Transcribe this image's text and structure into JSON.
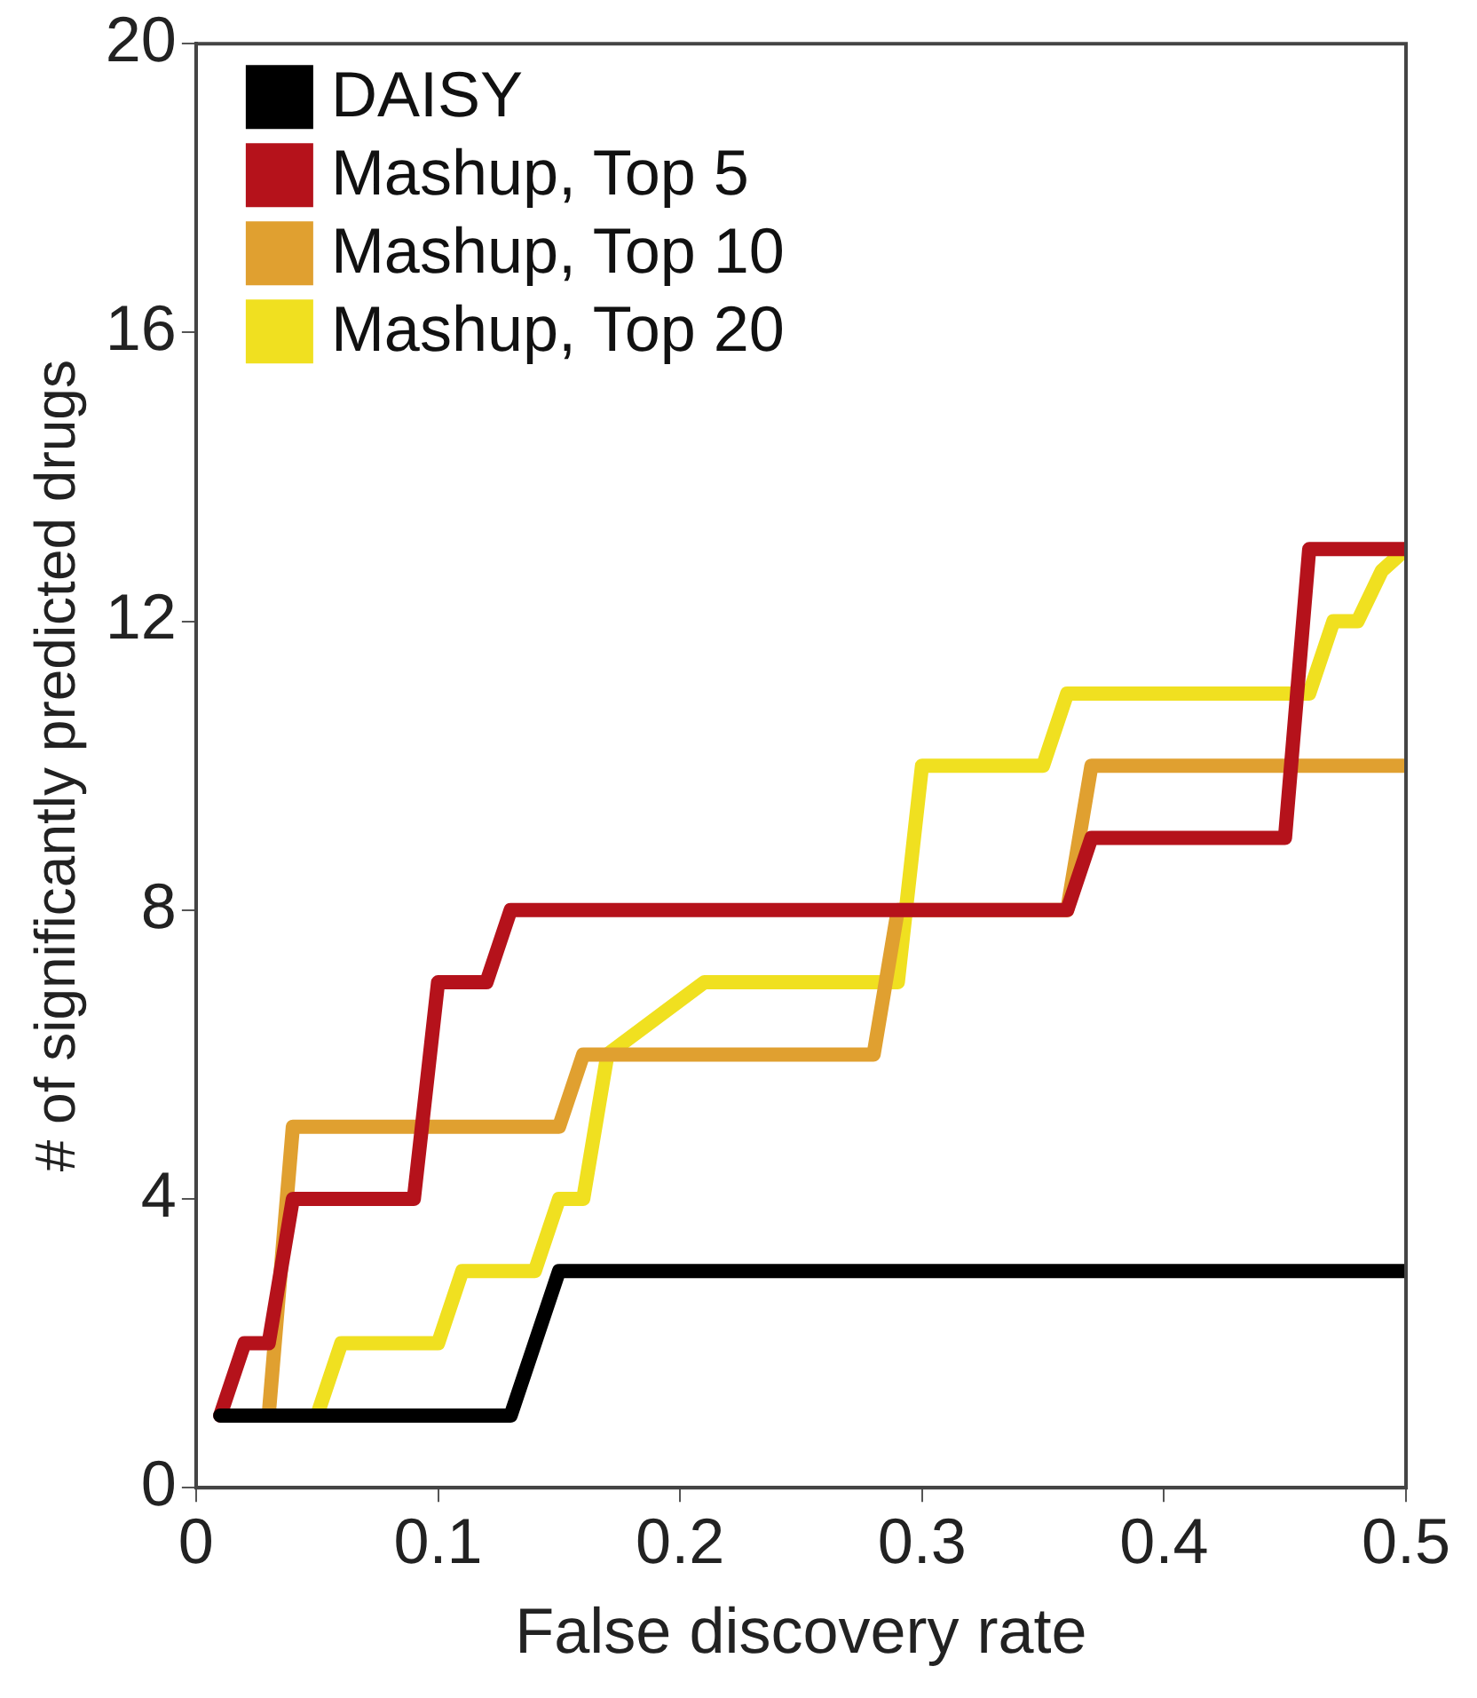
{
  "chart_data": {
    "type": "line",
    "xlabel": "False discovery rate",
    "ylabel": "# of significantly predicted drugs",
    "xlim": [
      0,
      0.5
    ],
    "xticks": [
      0,
      0.1,
      0.2,
      0.3,
      0.4,
      0.5
    ],
    "ylim": [
      0,
      20
    ],
    "yticks": [
      0,
      4,
      8,
      12,
      16,
      20
    ],
    "grid": false,
    "legend": "top left",
    "marker": "none",
    "line_style": "solid",
    "series": [
      {
        "name": "DAISY",
        "color": "#000000",
        "x": [
          0.01,
          0.13,
          0.15,
          0.5
        ],
        "values": [
          1,
          1,
          3,
          3
        ]
      },
      {
        "name": "Mashup, Top 5",
        "color": "#b5121b",
        "x": [
          0.01,
          0.02,
          0.03,
          0.04,
          0.09,
          0.1,
          0.12,
          0.13,
          0.36,
          0.37,
          0.45,
          0.46,
          0.5
        ],
        "values": [
          1,
          2,
          2,
          4,
          4,
          7,
          7,
          8,
          8,
          9,
          9,
          13,
          13
        ]
      },
      {
        "name": "Mashup, Top 10",
        "color": "#e0a030",
        "x": [
          0.03,
          0.04,
          0.15,
          0.16,
          0.28,
          0.29,
          0.36,
          0.37,
          0.5
        ],
        "values": [
          1,
          5,
          5,
          6,
          6,
          8,
          8,
          10,
          10
        ]
      },
      {
        "name": "Mashup, Top 20",
        "color": "#f0e020",
        "x": [
          0.05,
          0.06,
          0.1,
          0.11,
          0.14,
          0.15,
          0.16,
          0.17,
          0.21,
          0.29,
          0.3,
          0.35,
          0.36,
          0.46,
          0.47,
          0.48,
          0.49,
          0.5
        ],
        "values": [
          1,
          2,
          2,
          3,
          3,
          4,
          4,
          6,
          7,
          7,
          10,
          10,
          11,
          11,
          12,
          12,
          12.7,
          13
        ]
      }
    ]
  }
}
